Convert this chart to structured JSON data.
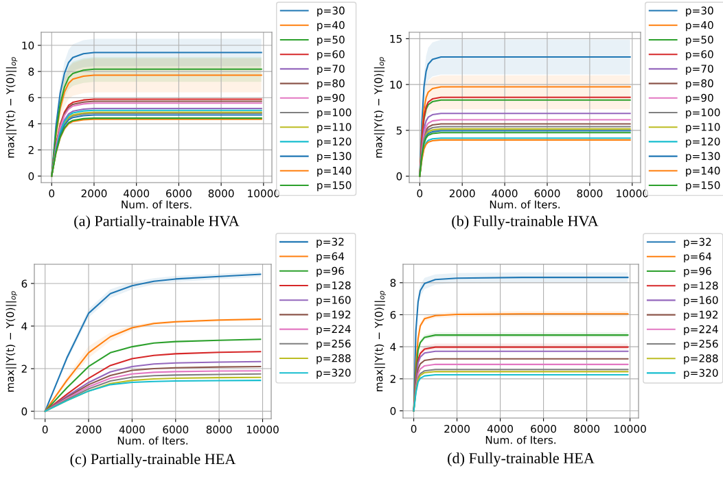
{
  "chart_data": [
    {
      "type": "line",
      "title": "(a) Partially-trainable HVA",
      "xlabel": "Num. of Iters.",
      "ylabel": "max||Y(t) − Y(0)||$_{op}$",
      "grid": true,
      "legend": "right",
      "xlim": [
        -495,
        10395
      ],
      "xticks": [
        0,
        2000,
        4000,
        6000,
        8000,
        10000
      ],
      "ylim": [
        -0.5,
        11
      ],
      "yticks": [
        0,
        2,
        4,
        6,
        8,
        10
      ],
      "x": [
        0,
        200,
        400,
        600,
        800,
        1000,
        1500,
        2000,
        5000,
        9900
      ],
      "series": [
        {
          "name": "p=30",
          "color": "#1f77b4",
          "values": [
            0,
            3.78,
            6.33,
            7.84,
            8.69,
            9.07,
            9.36,
            9.45,
            9.45,
            9.45
          ],
          "lower": [
            0,
            3.36,
            5.63,
            6.97,
            7.73,
            8.06,
            8.32,
            8.4,
            8.4,
            8.4
          ],
          "upper": [
            0,
            4.2,
            7.04,
            8.72,
            9.66,
            10.08,
            10.4,
            10.5,
            10.5,
            10.5
          ]
        },
        {
          "name": "p=40",
          "color": "#ff7f0e",
          "values": [
            0,
            3.09,
            5.17,
            6.41,
            7.1,
            7.41,
            7.64,
            7.72,
            7.72,
            7.72
          ],
          "lower": [
            0,
            2.56,
            4.29,
            5.31,
            5.89,
            6.14,
            6.34,
            6.4,
            6.4,
            6.4
          ],
          "upper": [
            0,
            3.6,
            6.03,
            7.47,
            8.28,
            8.64,
            8.91,
            9.0,
            9.0,
            9.0
          ]
        },
        {
          "name": "p=50",
          "color": "#2ca02c",
          "values": [
            0,
            3.27,
            5.48,
            6.79,
            7.53,
            7.85,
            8.1,
            8.18,
            8.18,
            8.18
          ],
          "lower": [
            0,
            2.88,
            4.82,
            5.98,
            6.62,
            6.91,
            7.13,
            7.2,
            7.2,
            7.2
          ],
          "upper": [
            0,
            3.64,
            6.1,
            7.55,
            8.37,
            8.74,
            9.01,
            9.1,
            9.1,
            9.1
          ]
        },
        {
          "name": "p=60",
          "color": "#d62728",
          "values": [
            0,
            2.35,
            3.94,
            4.88,
            5.41,
            5.64,
            5.82,
            5.88,
            5.88,
            5.88
          ]
        },
        {
          "name": "p=70",
          "color": "#9467bd",
          "values": [
            0,
            2.07,
            3.46,
            4.29,
            4.76,
            4.96,
            5.12,
            5.17,
            5.17,
            5.17
          ]
        },
        {
          "name": "p=80",
          "color": "#8c564b",
          "values": [
            0,
            2.29,
            3.83,
            4.75,
            5.26,
            5.49,
            5.66,
            5.72,
            5.72,
            5.72
          ]
        },
        {
          "name": "p=90",
          "color": "#e377c2",
          "values": [
            0,
            2.23,
            3.74,
            4.63,
            5.13,
            5.36,
            5.52,
            5.58,
            5.58,
            5.58
          ]
        },
        {
          "name": "p=100",
          "color": "#7f7f7f",
          "values": [
            0,
            1.92,
            3.22,
            3.98,
            4.42,
            4.61,
            4.75,
            4.8,
            4.8,
            4.8
          ]
        },
        {
          "name": "p=110",
          "color": "#bcbd22",
          "values": [
            0,
            1.95,
            3.27,
            4.05,
            4.49,
            4.68,
            4.83,
            4.88,
            4.88,
            4.88
          ]
        },
        {
          "name": "p=120",
          "color": "#17becf",
          "values": [
            0,
            2.01,
            3.37,
            4.17,
            4.63,
            4.83,
            4.98,
            5.03,
            5.03,
            5.03
          ]
        },
        {
          "name": "p=130",
          "color": "#1f77b4",
          "values": [
            0,
            1.87,
            3.13,
            3.88,
            4.3,
            4.48,
            4.62,
            4.67,
            4.67,
            4.67
          ]
        },
        {
          "name": "p=140",
          "color": "#ff7f0e",
          "values": [
            0,
            1.74,
            2.91,
            3.61,
            4.0,
            4.18,
            4.31,
            4.35,
            4.35,
            4.35
          ]
        },
        {
          "name": "p=150",
          "color": "#2ca02c",
          "values": [
            0,
            1.77,
            2.97,
            3.68,
            4.08,
            4.25,
            4.39,
            4.43,
            4.43,
            4.43
          ]
        }
      ]
    },
    {
      "type": "line",
      "title": "(b) Fully-trainable HVA",
      "xlabel": "Num. of Iters.",
      "ylabel": "max||Y(t) − Y(0)||$_{op}$",
      "grid": true,
      "legend": "right",
      "xlim": [
        -495,
        10395
      ],
      "xticks": [
        0,
        2000,
        4000,
        6000,
        8000,
        10000
      ],
      "ylim": [
        -0.7,
        15.7
      ],
      "yticks": [
        0,
        5,
        10,
        15
      ],
      "x": [
        0,
        100,
        200,
        300,
        400,
        600,
        1000,
        2000,
        5000,
        9900
      ],
      "series": [
        {
          "name": "p=30",
          "color": "#1f77b4",
          "values": [
            0,
            5.85,
            9.75,
            11.44,
            12.22,
            12.74,
            13.0,
            13.0,
            13.0,
            13.0
          ],
          "lower": [
            0,
            5.0,
            8.33,
            9.77,
            10.43,
            10.88,
            11.1,
            11.1,
            11.1,
            11.1
          ],
          "upper": [
            0,
            6.71,
            11.18,
            13.11,
            14.01,
            14.6,
            14.9,
            14.9,
            14.9,
            14.9
          ]
        },
        {
          "name": "p=40",
          "color": "#ff7f0e",
          "values": [
            0,
            4.39,
            7.31,
            8.58,
            9.17,
            9.56,
            9.75,
            9.75,
            9.75,
            9.75
          ],
          "lower": [
            0,
            3.29,
            5.48,
            6.42,
            6.86,
            7.15,
            7.3,
            7.3,
            7.3,
            7.3
          ],
          "upper": [
            0,
            4.95,
            8.25,
            9.68,
            10.34,
            10.78,
            11.0,
            11.0,
            11.0,
            11.0
          ]
        },
        {
          "name": "p=50",
          "color": "#2ca02c",
          "values": [
            0,
            3.74,
            6.23,
            7.3,
            7.8,
            8.13,
            8.3,
            8.3,
            8.3,
            8.3
          ]
        },
        {
          "name": "p=60",
          "color": "#d62728",
          "values": [
            0,
            3.87,
            6.45,
            7.57,
            8.08,
            8.43,
            8.6,
            8.6,
            8.6,
            8.6
          ]
        },
        {
          "name": "p=70",
          "color": "#9467bd",
          "values": [
            0,
            3.08,
            5.14,
            6.03,
            6.44,
            6.71,
            6.85,
            6.85,
            6.85,
            6.85
          ]
        },
        {
          "name": "p=80",
          "color": "#8c564b",
          "values": [
            0,
            2.57,
            4.28,
            5.02,
            5.36,
            5.59,
            5.7,
            5.7,
            5.7,
            5.7
          ]
        },
        {
          "name": "p=90",
          "color": "#e377c2",
          "values": [
            0,
            2.77,
            4.61,
            5.41,
            5.78,
            6.03,
            6.15,
            6.15,
            6.15,
            6.15
          ]
        },
        {
          "name": "p=100",
          "color": "#7f7f7f",
          "values": [
            0,
            2.43,
            4.05,
            4.75,
            5.08,
            5.29,
            5.4,
            5.4,
            5.4,
            5.4
          ]
        },
        {
          "name": "p=110",
          "color": "#bcbd22",
          "values": [
            0,
            2.32,
            3.86,
            4.53,
            4.84,
            5.05,
            5.15,
            5.15,
            5.15,
            5.15
          ]
        },
        {
          "name": "p=120",
          "color": "#17becf",
          "values": [
            0,
            1.87,
            3.11,
            3.65,
            3.9,
            4.07,
            4.15,
            4.15,
            4.15,
            4.15
          ]
        },
        {
          "name": "p=130",
          "color": "#1f77b4",
          "values": [
            0,
            2.23,
            3.71,
            4.36,
            4.65,
            4.85,
            4.95,
            4.95,
            4.95,
            4.95
          ]
        },
        {
          "name": "p=140",
          "color": "#ff7f0e",
          "values": [
            0,
            1.78,
            2.96,
            3.48,
            3.71,
            3.87,
            3.95,
            3.95,
            3.95,
            3.95
          ]
        },
        {
          "name": "p=150",
          "color": "#2ca02c",
          "values": [
            0,
            2.14,
            3.56,
            4.18,
            4.47,
            4.66,
            4.75,
            4.75,
            4.75,
            4.75
          ]
        }
      ]
    },
    {
      "type": "line",
      "title": "(c) Partially-trainable HEA",
      "xlabel": "Num. of Iters.",
      "ylabel": "max||Y(t) − Y(0)||$_{op}$",
      "grid": true,
      "legend": "right",
      "xlim": [
        -495,
        10395
      ],
      "xticks": [
        0,
        2000,
        4000,
        6000,
        8000,
        10000
      ],
      "ylim": [
        -0.35,
        6.9
      ],
      "yticks": [
        0,
        2,
        4,
        6
      ],
      "x": [
        0,
        1000,
        2000,
        3000,
        4000,
        5000,
        6000,
        8000,
        9900
      ],
      "series": [
        {
          "name": "p=32",
          "color": "#1f77b4",
          "values": [
            0,
            2.5,
            4.6,
            5.52,
            5.89,
            6.1,
            6.21,
            6.33,
            6.43
          ],
          "lower": [
            0,
            2.35,
            4.4,
            5.32,
            5.72,
            5.95,
            6.07,
            6.2,
            6.3
          ],
          "upper": [
            0,
            2.65,
            4.8,
            5.72,
            6.06,
            6.25,
            6.35,
            6.46,
            6.55
          ]
        },
        {
          "name": "p=64",
          "color": "#ff7f0e",
          "values": [
            0,
            1.45,
            2.75,
            3.5,
            3.92,
            4.12,
            4.2,
            4.28,
            4.32
          ],
          "lower": [
            0,
            1.3,
            2.5,
            3.3,
            3.8,
            4.05,
            4.14,
            4.22,
            4.26
          ],
          "upper": [
            0,
            1.6,
            3.05,
            3.7,
            4.04,
            4.19,
            4.26,
            4.34,
            4.38
          ]
        },
        {
          "name": "p=96",
          "color": "#2ca02c",
          "values": [
            0,
            1.1,
            2.1,
            2.75,
            3.03,
            3.2,
            3.27,
            3.33,
            3.38
          ]
        },
        {
          "name": "p=128",
          "color": "#d62728",
          "values": [
            0,
            0.8,
            1.55,
            2.15,
            2.47,
            2.62,
            2.7,
            2.77,
            2.8
          ]
        },
        {
          "name": "p=160",
          "color": "#9467bd",
          "values": [
            0,
            0.7,
            1.35,
            1.85,
            2.1,
            2.22,
            2.27,
            2.31,
            2.33
          ]
        },
        {
          "name": "p=192",
          "color": "#8c564b",
          "values": [
            0,
            0.65,
            1.25,
            1.68,
            1.92,
            2.0,
            2.04,
            2.08,
            2.1
          ]
        },
        {
          "name": "p=224",
          "color": "#e377c2",
          "values": [
            0,
            0.6,
            1.15,
            1.55,
            1.75,
            1.83,
            1.86,
            1.89,
            1.9
          ]
        },
        {
          "name": "p=256",
          "color": "#7f7f7f",
          "values": [
            0,
            0.55,
            1.05,
            1.42,
            1.6,
            1.67,
            1.7,
            1.73,
            1.75
          ]
        },
        {
          "name": "p=288",
          "color": "#bcbd22",
          "values": [
            0,
            0.5,
            0.95,
            1.3,
            1.45,
            1.52,
            1.55,
            1.58,
            1.59
          ]
        },
        {
          "name": "p=320",
          "color": "#17becf",
          "values": [
            0,
            0.5,
            0.95,
            1.25,
            1.36,
            1.4,
            1.42,
            1.44,
            1.45
          ]
        }
      ]
    },
    {
      "type": "line",
      "title": "(d) Fully-trainable HEA",
      "xlabel": "Num. of Iters.",
      "ylabel": "max||Y(t) − Y(0)||$_{op}$",
      "grid": true,
      "legend": "right",
      "xlim": [
        -495,
        10395
      ],
      "xticks": [
        0,
        2000,
        4000,
        6000,
        8000,
        10000
      ],
      "ylim": [
        -0.45,
        9.15
      ],
      "yticks": [
        0,
        2,
        4,
        6,
        8
      ],
      "x": [
        0,
        100,
        200,
        300,
        500,
        1000,
        2000,
        5000,
        9900
      ],
      "series": [
        {
          "name": "p=32",
          "color": "#1f77b4",
          "values": [
            0,
            5.0,
            6.8,
            7.5,
            7.95,
            8.2,
            8.28,
            8.33,
            8.33
          ],
          "lower": [
            0,
            4.7,
            6.45,
            7.15,
            7.6,
            7.88,
            7.98,
            8.0,
            8.0
          ],
          "upper": [
            0,
            5.3,
            7.15,
            7.85,
            8.3,
            8.52,
            8.6,
            8.65,
            8.65
          ]
        },
        {
          "name": "p=64",
          "color": "#ff7f0e",
          "values": [
            0,
            2.8,
            4.5,
            5.3,
            5.75,
            5.95,
            6.02,
            6.05,
            6.05
          ],
          "lower": [
            0,
            2.65,
            4.3,
            5.1,
            5.58,
            5.8,
            5.86,
            5.88,
            5.88
          ],
          "upper": [
            0,
            2.95,
            4.7,
            5.5,
            5.92,
            6.1,
            6.18,
            6.22,
            6.22
          ]
        },
        {
          "name": "p=96",
          "color": "#2ca02c",
          "values": [
            0,
            2.37,
            3.78,
            4.26,
            4.59,
            4.73,
            4.73,
            4.73,
            4.73
          ],
          "lower": [
            0,
            2.3,
            3.68,
            4.14,
            4.46,
            4.6,
            4.6,
            4.6,
            4.6
          ],
          "upper": [
            0,
            2.45,
            3.92,
            4.41,
            4.75,
            4.9,
            4.9,
            4.9,
            4.9
          ]
        },
        {
          "name": "p=128",
          "color": "#d62728",
          "values": [
            0,
            1.99,
            3.18,
            3.58,
            3.86,
            3.98,
            3.98,
            3.98,
            3.98
          ],
          "lower": [
            0,
            1.92,
            3.06,
            3.45,
            3.72,
            3.83,
            3.83,
            3.83,
            3.83
          ],
          "upper": [
            0,
            2.1,
            3.36,
            3.78,
            4.07,
            4.2,
            4.2,
            4.2,
            4.2
          ]
        },
        {
          "name": "p=160",
          "color": "#9467bd",
          "values": [
            0,
            1.86,
            2.98,
            3.35,
            3.61,
            3.72,
            3.72,
            3.72,
            3.72
          ]
        },
        {
          "name": "p=192",
          "color": "#8c564b",
          "values": [
            0,
            1.63,
            2.6,
            2.93,
            3.15,
            3.25,
            3.25,
            3.25,
            3.25
          ]
        },
        {
          "name": "p=224",
          "color": "#e377c2",
          "values": [
            0,
            1.45,
            2.32,
            2.61,
            2.81,
            2.9,
            2.9,
            2.9,
            2.9
          ]
        },
        {
          "name": "p=256",
          "color": "#7f7f7f",
          "values": [
            0,
            1.29,
            2.06,
            2.32,
            2.5,
            2.58,
            2.58,
            2.58,
            2.58
          ]
        },
        {
          "name": "p=288",
          "color": "#bcbd22",
          "values": [
            0,
            1.23,
            1.96,
            2.21,
            2.38,
            2.45,
            2.45,
            2.45,
            2.45
          ]
        },
        {
          "name": "p=320",
          "color": "#17becf",
          "values": [
            0,
            1.13,
            1.8,
            2.03,
            2.18,
            2.25,
            2.25,
            2.25,
            2.25
          ]
        }
      ]
    }
  ]
}
